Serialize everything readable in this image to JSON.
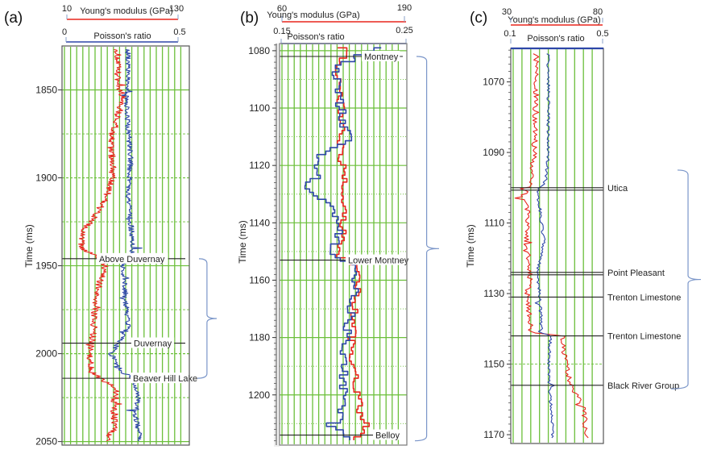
{
  "chart_data": [
    {
      "type": "line",
      "panel": "(a)",
      "title": "",
      "ylabel": "Time (ms)",
      "ylim": [
        1825,
        2052
      ],
      "yticks": [
        1850,
        1900,
        1950,
        2000,
        2050
      ],
      "x_axes": [
        {
          "name": "Young's modulus (GPa)",
          "color": "#e8261d",
          "min": 10,
          "max": 130,
          "min_label": "10",
          "max_label": "130"
        },
        {
          "name": "Poisson's ratio",
          "color": "#2e47a8",
          "min": 0,
          "max": 0.5,
          "min_label": "0",
          "max_label": "0.5"
        }
      ],
      "series": [
        {
          "name": "Young's modulus (GPa)",
          "color": "#e8261d",
          "trend_time": [
            1827,
            1845,
            1855,
            1865,
            1880,
            1895,
            1910,
            1920,
            1930,
            1940,
            1946,
            1950,
            1960,
            1975,
            1990,
            2000,
            2010,
            2014,
            2020,
            2030,
            2040,
            2050
          ],
          "trend_value": [
            62,
            62,
            68,
            62,
            55,
            58,
            52,
            42,
            28,
            26,
            45,
            50,
            44,
            40,
            38,
            34,
            36,
            44,
            62,
            58,
            60,
            52
          ],
          "noise": 3.5
        },
        {
          "name": "Poisson's ratio",
          "color": "#2e47a8",
          "trend_time": [
            1827,
            1845,
            1855,
            1870,
            1890,
            1910,
            1925,
            1940,
            1946,
            1950,
            1970,
            1985,
            1994,
            2000,
            2010,
            2014,
            2025,
            2035,
            2050
          ],
          "trend_value": [
            0.26,
            0.26,
            0.25,
            0.26,
            0.27,
            0.26,
            0.27,
            0.28,
            0.27,
            0.24,
            0.25,
            0.26,
            0.22,
            0.19,
            0.23,
            0.28,
            0.3,
            0.29,
            0.31
          ],
          "noise": 0.011
        }
      ],
      "formations": [
        {
          "name": "Above Duvernay",
          "time": 1946
        },
        {
          "name": "Duvernay",
          "time": 1994
        },
        {
          "name": "Beaver Hill Lake",
          "time": 2014
        }
      ],
      "bracket": {
        "from_time": 1946,
        "to_time": 2014
      }
    },
    {
      "type": "line",
      "panel": "(b)",
      "title": "",
      "ylabel": "Time (ms)",
      "ylim": [
        1077.5,
        1217.5
      ],
      "yticks": [
        1080,
        1100,
        1120,
        1140,
        1160,
        1180,
        1200
      ],
      "x_axes": [
        {
          "name": "Young's modulus (GPa)",
          "color": "#e8261d",
          "min": 60,
          "max": 190,
          "min_label": "60",
          "max_label": "190"
        },
        {
          "name": "Poisson's ratio",
          "color": "#2e47a8",
          "min": 0.15,
          "max": 0.25,
          "min_label": "0.15",
          "max_label": "0.25"
        }
      ],
      "series": [
        {
          "name": "Young's modulus (GPa)",
          "color": "#e8261d",
          "trend_time": [
            1079,
            1082,
            1086,
            1095,
            1105,
            1115,
            1125,
            1135,
            1145,
            1152,
            1156,
            1165,
            1175,
            1185,
            1195,
            1205,
            1212,
            1216
          ],
          "trend_value": [
            123,
            128,
            118,
            120,
            125,
            122,
            126,
            127,
            124,
            121,
            142,
            140,
            136,
            133,
            138,
            142,
            150,
            138
          ],
          "noise": 4
        },
        {
          "name": "Poisson's ratio",
          "color": "#2e47a8",
          "trend_time": [
            1079,
            1082,
            1086,
            1095,
            1105,
            1112,
            1119,
            1124,
            1128,
            1135,
            1142,
            1150,
            1153,
            1156,
            1165,
            1175,
            1185,
            1195,
            1205,
            1212,
            1216
          ],
          "trend_value": [
            0.235,
            0.215,
            0.195,
            0.195,
            0.2,
            0.205,
            0.175,
            0.18,
            0.17,
            0.19,
            0.2,
            0.19,
            0.2,
            0.21,
            0.21,
            0.205,
            0.2,
            0.2,
            0.2,
            0.195,
            0.205
          ],
          "noise": 0.004
        }
      ],
      "formations": [
        {
          "name": "Montney",
          "time": 1082
        },
        {
          "name": "Lower Montney",
          "time": 1153
        },
        {
          "name": "Belloy",
          "time": 1214
        }
      ],
      "bracket": {
        "from_time": 1082,
        "to_time": 1216
      }
    },
    {
      "type": "line",
      "panel": "(c)",
      "title": "",
      "ylabel": "Time (ms)",
      "ylim": [
        1060.5,
        1172.5
      ],
      "yticks": [
        1070,
        1090,
        1110,
        1130,
        1150,
        1170
      ],
      "x_axes": [
        {
          "name": "Young's modulus (GPa)",
          "color": "#e8261d",
          "min": 30,
          "max": 80,
          "min_label": "30",
          "max_label": "80"
        },
        {
          "name": "Poisson's ratio",
          "color": "#2e47a8",
          "min": 0.1,
          "max": 0.5,
          "min_label": "0.1",
          "max_label": "0.5"
        }
      ],
      "series": [
        {
          "name": "Young's modulus (GPa)",
          "color": "#e8261d",
          "trend_time": [
            1062,
            1075,
            1090,
            1099,
            1102,
            1110,
            1118,
            1124,
            1130,
            1141,
            1142,
            1150,
            1156,
            1162,
            1171
          ],
          "trend_value": [
            43,
            43,
            42,
            40,
            36,
            39,
            37,
            40,
            38,
            40,
            58,
            60,
            63,
            70,
            72
          ],
          "noise": 1.6
        },
        {
          "name": "Poisson's ratio",
          "color": "#2e47a8",
          "trend_time": [
            1062,
            1075,
            1090,
            1098,
            1101,
            1105,
            1115,
            1124,
            1130,
            1141,
            1142,
            1150,
            1160,
            1171
          ],
          "trend_value": [
            0.26,
            0.26,
            0.26,
            0.25,
            0.21,
            0.22,
            0.24,
            0.21,
            0.22,
            0.23,
            0.27,
            0.26,
            0.27,
            0.28
          ],
          "noise": 0.007
        }
      ],
      "formations": [
        {
          "name": "Utica",
          "time": 1100
        },
        {
          "name": "Point Pleasant",
          "time": 1124
        },
        {
          "name": "Trenton Limestone",
          "time": 1131
        },
        {
          "name": "Trenton Limestone",
          "time": 1142
        },
        {
          "name": "Black River Group",
          "time": 1156
        }
      ],
      "bracket": {
        "from_time": 1095,
        "to_time": 1157
      }
    }
  ]
}
